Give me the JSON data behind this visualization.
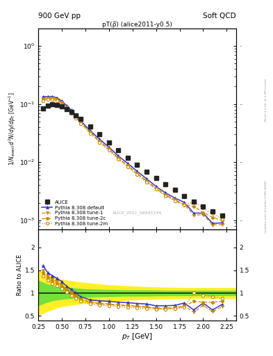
{
  "title_left": "900 GeV pp",
  "title_right": "Soft QCD",
  "plot_title": "pT(ρ̅) (alice2011-y0.5)",
  "watermark": "ALICE_2011_S8945144",
  "right_label": "Rivet 3.1.10, ≥ 3.3M events",
  "right_label2": "mcplots.cern.ch [arXiv:1306.3436]",
  "xlabel": "p_T [GeV]",
  "ylabel_main": "1/N_{event} d^{2}N/dy/dp_T [GeV^{-1}]",
  "ylabel_ratio": "Ratio to ALICE",
  "xlim": [
    0.25,
    2.35
  ],
  "ylim_main": [
    0.0007,
    2.0
  ],
  "ylim_ratio": [
    0.4,
    2.4
  ],
  "alice_pt": [
    0.3,
    0.35,
    0.4,
    0.45,
    0.5,
    0.55,
    0.6,
    0.65,
    0.7,
    0.8,
    0.9,
    1.0,
    1.1,
    1.2,
    1.3,
    1.4,
    1.5,
    1.6,
    1.7,
    1.8,
    1.9,
    2.0,
    2.1,
    2.2
  ],
  "alice_y": [
    0.083,
    0.093,
    0.098,
    0.097,
    0.09,
    0.082,
    0.073,
    0.064,
    0.056,
    0.041,
    0.03,
    0.022,
    0.016,
    0.012,
    0.009,
    0.0068,
    0.0053,
    0.0041,
    0.0033,
    0.0026,
    0.0021,
    0.0017,
    0.0014,
    0.0012
  ],
  "alice_yerr": [
    0.005,
    0.005,
    0.005,
    0.005,
    0.004,
    0.004,
    0.003,
    0.003,
    0.003,
    0.002,
    0.0015,
    0.001,
    0.0008,
    0.0006,
    0.0005,
    0.0004,
    0.0003,
    0.00025,
    0.0002,
    0.00016,
    0.00013,
    0.0001,
    9e-05,
    8e-05
  ],
  "pythia_default_pt": [
    0.3,
    0.35,
    0.4,
    0.45,
    0.5,
    0.55,
    0.6,
    0.65,
    0.7,
    0.8,
    0.9,
    1.0,
    1.1,
    1.2,
    1.3,
    1.4,
    1.5,
    1.6,
    1.7,
    1.8,
    1.9,
    2.0,
    2.1,
    2.2
  ],
  "pythia_default_ratio": [
    1.6,
    1.45,
    1.38,
    1.32,
    1.25,
    1.15,
    1.08,
    1.0,
    0.92,
    0.85,
    0.83,
    0.82,
    0.8,
    0.79,
    0.77,
    0.76,
    0.72,
    0.72,
    0.73,
    0.78,
    0.63,
    0.78,
    0.63,
    0.75
  ],
  "pythia_tune1_pt": [
    0.3,
    0.35,
    0.4,
    0.45,
    0.5,
    0.55,
    0.6,
    0.65,
    0.7,
    0.8,
    0.9,
    1.0,
    1.1,
    1.2,
    1.3,
    1.4,
    1.5,
    1.6,
    1.7,
    1.8,
    1.9,
    2.0,
    2.1,
    2.2
  ],
  "pythia_tune1_ratio": [
    1.5,
    1.38,
    1.3,
    1.25,
    1.18,
    1.09,
    1.02,
    0.95,
    0.87,
    0.8,
    0.77,
    0.76,
    0.74,
    0.73,
    0.71,
    0.7,
    0.67,
    0.67,
    0.68,
    0.72,
    0.58,
    0.73,
    0.59,
    0.7
  ],
  "pythia_tune2c_pt": [
    0.3,
    0.35,
    0.4,
    0.45,
    0.5,
    0.55,
    0.6,
    0.65,
    0.7,
    0.8,
    0.9,
    1.0,
    1.1,
    1.2,
    1.3,
    1.4,
    1.5,
    1.6,
    1.7,
    1.8,
    1.9,
    2.0,
    2.1,
    2.2
  ],
  "pythia_tune2c_ratio": [
    1.45,
    1.34,
    1.26,
    1.21,
    1.15,
    1.06,
    0.99,
    0.93,
    0.86,
    0.79,
    0.76,
    0.75,
    0.73,
    0.72,
    0.7,
    0.69,
    0.66,
    0.66,
    0.67,
    0.71,
    0.82,
    0.8,
    0.8,
    0.82
  ],
  "pythia_tune2m_pt": [
    0.3,
    0.35,
    0.4,
    0.45,
    0.5,
    0.55,
    0.6,
    0.65,
    0.7,
    0.8,
    0.9,
    1.0,
    1.1,
    1.2,
    1.3,
    1.4,
    1.5,
    1.6,
    1.7,
    1.8,
    1.9,
    2.0,
    2.1,
    2.2
  ],
  "pythia_tune2m_ratio": [
    1.38,
    1.28,
    1.21,
    1.16,
    1.1,
    1.02,
    0.95,
    0.89,
    0.82,
    0.76,
    0.73,
    0.72,
    0.7,
    0.69,
    0.67,
    0.66,
    0.64,
    0.64,
    0.65,
    0.69,
    1.0,
    0.95,
    0.92,
    0.88
  ],
  "band_yellow_x": [
    0.25,
    0.3,
    0.35,
    0.4,
    0.45,
    0.5,
    0.6,
    0.7,
    0.8,
    1.0,
    1.2,
    1.4,
    1.6,
    1.8,
    2.0,
    2.2,
    2.35
  ],
  "band_yellow_lo": [
    0.5,
    0.55,
    0.6,
    0.63,
    0.67,
    0.7,
    0.73,
    0.76,
    0.78,
    0.82,
    0.84,
    0.86,
    0.87,
    0.88,
    0.88,
    0.88,
    0.88
  ],
  "band_yellow_hi": [
    1.5,
    1.45,
    1.4,
    1.37,
    1.33,
    1.3,
    1.27,
    1.24,
    1.22,
    1.18,
    1.16,
    1.14,
    1.13,
    1.12,
    1.12,
    1.12,
    1.12
  ],
  "band_green_x": [
    0.25,
    0.3,
    0.35,
    0.4,
    0.5,
    0.6,
    0.7,
    0.8,
    1.0,
    1.2,
    1.4,
    1.6,
    1.8,
    2.0,
    2.2,
    2.35
  ],
  "band_green_lo": [
    0.72,
    0.76,
    0.8,
    0.83,
    0.86,
    0.88,
    0.9,
    0.91,
    0.92,
    0.93,
    0.93,
    0.94,
    0.94,
    0.94,
    0.94,
    0.94
  ],
  "band_green_hi": [
    1.28,
    1.24,
    1.2,
    1.17,
    1.14,
    1.12,
    1.1,
    1.09,
    1.08,
    1.07,
    1.07,
    1.06,
    1.06,
    1.06,
    1.06,
    1.06
  ],
  "color_alice": "#222222",
  "color_default": "#3333cc",
  "color_tune1": "#cc8800",
  "color_tune2c": "#cc8800",
  "color_tune2m": "#cc8800",
  "color_band_green": "#44dd44",
  "color_band_yellow": "#ffee00"
}
